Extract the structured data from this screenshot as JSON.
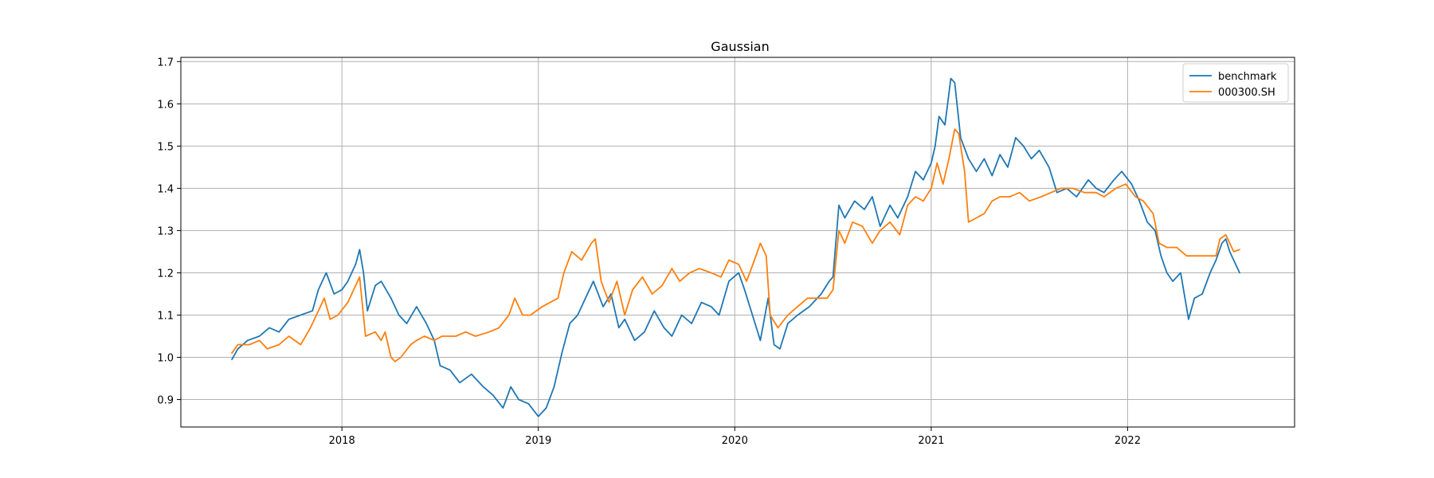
{
  "chart_data": {
    "type": "line",
    "title": "Gaussian",
    "xlabel": "",
    "ylabel": "",
    "xlim": [
      2017.18,
      2022.85
    ],
    "ylim": [
      0.835,
      1.71
    ],
    "grid": true,
    "legend_position": "top-right",
    "x_ticks": [
      {
        "value": 2018,
        "label": "2018"
      },
      {
        "value": 2019,
        "label": "2019"
      },
      {
        "value": 2020,
        "label": "2020"
      },
      {
        "value": 2021,
        "label": "2021"
      },
      {
        "value": 2022,
        "label": "2022"
      }
    ],
    "y_ticks": [
      {
        "value": 0.9,
        "label": "0.9"
      },
      {
        "value": 1.0,
        "label": "1.0"
      },
      {
        "value": 1.1,
        "label": "1.1"
      },
      {
        "value": 1.2,
        "label": "1.2"
      },
      {
        "value": 1.3,
        "label": "1.3"
      },
      {
        "value": 1.4,
        "label": "1.4"
      },
      {
        "value": 1.5,
        "label": "1.5"
      },
      {
        "value": 1.6,
        "label": "1.6"
      },
      {
        "value": 1.7,
        "label": "1.7"
      }
    ],
    "series": [
      {
        "name": "benchmark",
        "color": "#1f77b4",
        "points": [
          [
            2017.44,
            0.995
          ],
          [
            2017.47,
            1.02
          ],
          [
            2017.52,
            1.04
          ],
          [
            2017.58,
            1.05
          ],
          [
            2017.63,
            1.07
          ],
          [
            2017.68,
            1.06
          ],
          [
            2017.73,
            1.09
          ],
          [
            2017.79,
            1.1
          ],
          [
            2017.85,
            1.11
          ],
          [
            2017.88,
            1.16
          ],
          [
            2017.92,
            1.2
          ],
          [
            2017.96,
            1.15
          ],
          [
            2018.0,
            1.16
          ],
          [
            2018.03,
            1.18
          ],
          [
            2018.07,
            1.22
          ],
          [
            2018.09,
            1.255
          ],
          [
            2018.11,
            1.2
          ],
          [
            2018.13,
            1.11
          ],
          [
            2018.17,
            1.17
          ],
          [
            2018.2,
            1.18
          ],
          [
            2018.25,
            1.14
          ],
          [
            2018.29,
            1.1
          ],
          [
            2018.33,
            1.08
          ],
          [
            2018.38,
            1.12
          ],
          [
            2018.43,
            1.08
          ],
          [
            2018.47,
            1.04
          ],
          [
            2018.5,
            0.98
          ],
          [
            2018.55,
            0.97
          ],
          [
            2018.6,
            0.94
          ],
          [
            2018.66,
            0.96
          ],
          [
            2018.72,
            0.93
          ],
          [
            2018.77,
            0.91
          ],
          [
            2018.82,
            0.88
          ],
          [
            2018.86,
            0.93
          ],
          [
            2018.9,
            0.9
          ],
          [
            2018.95,
            0.89
          ],
          [
            2019.0,
            0.86
          ],
          [
            2019.04,
            0.88
          ],
          [
            2019.08,
            0.93
          ],
          [
            2019.12,
            1.01
          ],
          [
            2019.16,
            1.08
          ],
          [
            2019.2,
            1.1
          ],
          [
            2019.24,
            1.14
          ],
          [
            2019.28,
            1.18
          ],
          [
            2019.33,
            1.12
          ],
          [
            2019.37,
            1.15
          ],
          [
            2019.41,
            1.07
          ],
          [
            2019.44,
            1.09
          ],
          [
            2019.49,
            1.04
          ],
          [
            2019.54,
            1.06
          ],
          [
            2019.59,
            1.11
          ],
          [
            2019.64,
            1.07
          ],
          [
            2019.68,
            1.05
          ],
          [
            2019.73,
            1.1
          ],
          [
            2019.78,
            1.08
          ],
          [
            2019.83,
            1.13
          ],
          [
            2019.88,
            1.12
          ],
          [
            2019.92,
            1.1
          ],
          [
            2019.97,
            1.18
          ],
          [
            2020.02,
            1.2
          ],
          [
            2020.05,
            1.16
          ],
          [
            2020.09,
            1.1
          ],
          [
            2020.13,
            1.04
          ],
          [
            2020.17,
            1.14
          ],
          [
            2020.2,
            1.03
          ],
          [
            2020.23,
            1.02
          ],
          [
            2020.27,
            1.08
          ],
          [
            2020.32,
            1.1
          ],
          [
            2020.38,
            1.12
          ],
          [
            2020.44,
            1.15
          ],
          [
            2020.48,
            1.18
          ],
          [
            2020.5,
            1.19
          ],
          [
            2020.53,
            1.36
          ],
          [
            2020.56,
            1.33
          ],
          [
            2020.61,
            1.37
          ],
          [
            2020.66,
            1.35
          ],
          [
            2020.7,
            1.38
          ],
          [
            2020.74,
            1.31
          ],
          [
            2020.79,
            1.36
          ],
          [
            2020.83,
            1.33
          ],
          [
            2020.88,
            1.38
          ],
          [
            2020.92,
            1.44
          ],
          [
            2020.96,
            1.42
          ],
          [
            2021.0,
            1.46
          ],
          [
            2021.02,
            1.5
          ],
          [
            2021.04,
            1.57
          ],
          [
            2021.07,
            1.55
          ],
          [
            2021.1,
            1.66
          ],
          [
            2021.12,
            1.65
          ],
          [
            2021.15,
            1.52
          ],
          [
            2021.19,
            1.47
          ],
          [
            2021.23,
            1.44
          ],
          [
            2021.27,
            1.47
          ],
          [
            2021.31,
            1.43
          ],
          [
            2021.35,
            1.48
          ],
          [
            2021.39,
            1.45
          ],
          [
            2021.43,
            1.52
          ],
          [
            2021.47,
            1.5
          ],
          [
            2021.51,
            1.47
          ],
          [
            2021.55,
            1.49
          ],
          [
            2021.6,
            1.45
          ],
          [
            2021.64,
            1.39
          ],
          [
            2021.69,
            1.4
          ],
          [
            2021.74,
            1.38
          ],
          [
            2021.8,
            1.42
          ],
          [
            2021.84,
            1.4
          ],
          [
            2021.88,
            1.39
          ],
          [
            2021.93,
            1.42
          ],
          [
            2021.97,
            1.44
          ],
          [
            2022.02,
            1.41
          ],
          [
            2022.06,
            1.37
          ],
          [
            2022.1,
            1.32
          ],
          [
            2022.14,
            1.3
          ],
          [
            2022.17,
            1.24
          ],
          [
            2022.2,
            1.2
          ],
          [
            2022.23,
            1.18
          ],
          [
            2022.27,
            1.2
          ],
          [
            2022.31,
            1.09
          ],
          [
            2022.34,
            1.14
          ],
          [
            2022.38,
            1.15
          ],
          [
            2022.42,
            1.2
          ],
          [
            2022.45,
            1.23
          ],
          [
            2022.48,
            1.27
          ],
          [
            2022.5,
            1.28
          ],
          [
            2022.52,
            1.25
          ],
          [
            2022.55,
            1.22
          ],
          [
            2022.57,
            1.2
          ]
        ]
      },
      {
        "name": "000300.SH",
        "color": "#ff7f0e",
        "points": [
          [
            2017.44,
            1.01
          ],
          [
            2017.47,
            1.03
          ],
          [
            2017.53,
            1.03
          ],
          [
            2017.58,
            1.04
          ],
          [
            2017.62,
            1.02
          ],
          [
            2017.68,
            1.03
          ],
          [
            2017.73,
            1.05
          ],
          [
            2017.79,
            1.03
          ],
          [
            2017.84,
            1.07
          ],
          [
            2017.88,
            1.11
          ],
          [
            2017.91,
            1.14
          ],
          [
            2017.94,
            1.09
          ],
          [
            2017.98,
            1.1
          ],
          [
            2018.03,
            1.13
          ],
          [
            2018.07,
            1.17
          ],
          [
            2018.09,
            1.19
          ],
          [
            2018.12,
            1.05
          ],
          [
            2018.17,
            1.06
          ],
          [
            2018.2,
            1.04
          ],
          [
            2018.22,
            1.06
          ],
          [
            2018.25,
            1.0
          ],
          [
            2018.27,
            0.99
          ],
          [
            2018.3,
            1.0
          ],
          [
            2018.35,
            1.03
          ],
          [
            2018.38,
            1.04
          ],
          [
            2018.42,
            1.05
          ],
          [
            2018.47,
            1.04
          ],
          [
            2018.51,
            1.05
          ],
          [
            2018.58,
            1.05
          ],
          [
            2018.63,
            1.06
          ],
          [
            2018.68,
            1.05
          ],
          [
            2018.75,
            1.06
          ],
          [
            2018.8,
            1.07
          ],
          [
            2018.85,
            1.1
          ],
          [
            2018.88,
            1.14
          ],
          [
            2018.92,
            1.1
          ],
          [
            2018.96,
            1.1
          ],
          [
            2019.02,
            1.12
          ],
          [
            2019.06,
            1.13
          ],
          [
            2019.1,
            1.14
          ],
          [
            2019.13,
            1.2
          ],
          [
            2019.17,
            1.25
          ],
          [
            2019.22,
            1.23
          ],
          [
            2019.27,
            1.27
          ],
          [
            2019.29,
            1.28
          ],
          [
            2019.32,
            1.18
          ],
          [
            2019.36,
            1.13
          ],
          [
            2019.4,
            1.18
          ],
          [
            2019.44,
            1.1
          ],
          [
            2019.48,
            1.16
          ],
          [
            2019.53,
            1.19
          ],
          [
            2019.58,
            1.15
          ],
          [
            2019.63,
            1.17
          ],
          [
            2019.68,
            1.21
          ],
          [
            2019.72,
            1.18
          ],
          [
            2019.77,
            1.2
          ],
          [
            2019.82,
            1.21
          ],
          [
            2019.88,
            1.2
          ],
          [
            2019.93,
            1.19
          ],
          [
            2019.97,
            1.23
          ],
          [
            2020.02,
            1.22
          ],
          [
            2020.06,
            1.18
          ],
          [
            2020.1,
            1.23
          ],
          [
            2020.13,
            1.27
          ],
          [
            2020.16,
            1.24
          ],
          [
            2020.18,
            1.1
          ],
          [
            2020.22,
            1.07
          ],
          [
            2020.27,
            1.1
          ],
          [
            2020.32,
            1.12
          ],
          [
            2020.37,
            1.14
          ],
          [
            2020.42,
            1.14
          ],
          [
            2020.47,
            1.14
          ],
          [
            2020.5,
            1.16
          ],
          [
            2020.53,
            1.3
          ],
          [
            2020.56,
            1.27
          ],
          [
            2020.6,
            1.32
          ],
          [
            2020.65,
            1.31
          ],
          [
            2020.7,
            1.27
          ],
          [
            2020.74,
            1.3
          ],
          [
            2020.79,
            1.32
          ],
          [
            2020.84,
            1.29
          ],
          [
            2020.88,
            1.36
          ],
          [
            2020.92,
            1.38
          ],
          [
            2020.96,
            1.37
          ],
          [
            2021.0,
            1.4
          ],
          [
            2021.03,
            1.46
          ],
          [
            2021.06,
            1.41
          ],
          [
            2021.09,
            1.47
          ],
          [
            2021.12,
            1.54
          ],
          [
            2021.14,
            1.53
          ],
          [
            2021.17,
            1.44
          ],
          [
            2021.19,
            1.32
          ],
          [
            2021.23,
            1.33
          ],
          [
            2021.27,
            1.34
          ],
          [
            2021.31,
            1.37
          ],
          [
            2021.35,
            1.38
          ],
          [
            2021.4,
            1.38
          ],
          [
            2021.45,
            1.39
          ],
          [
            2021.5,
            1.37
          ],
          [
            2021.56,
            1.38
          ],
          [
            2021.61,
            1.39
          ],
          [
            2021.66,
            1.4
          ],
          [
            2021.72,
            1.4
          ],
          [
            2021.78,
            1.39
          ],
          [
            2021.84,
            1.39
          ],
          [
            2021.88,
            1.38
          ],
          [
            2021.94,
            1.4
          ],
          [
            2021.99,
            1.41
          ],
          [
            2022.04,
            1.38
          ],
          [
            2022.08,
            1.37
          ],
          [
            2022.13,
            1.34
          ],
          [
            2022.16,
            1.27
          ],
          [
            2022.2,
            1.26
          ],
          [
            2022.25,
            1.26
          ],
          [
            2022.3,
            1.24
          ],
          [
            2022.35,
            1.24
          ],
          [
            2022.4,
            1.24
          ],
          [
            2022.45,
            1.24
          ],
          [
            2022.47,
            1.28
          ],
          [
            2022.5,
            1.29
          ],
          [
            2022.52,
            1.27
          ],
          [
            2022.54,
            1.25
          ],
          [
            2022.57,
            1.255
          ]
        ]
      }
    ]
  }
}
